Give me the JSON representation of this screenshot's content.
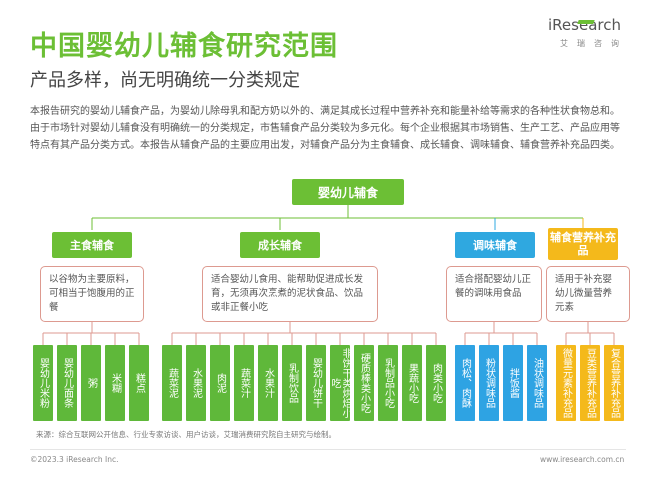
{
  "title": "中国婴幼儿辅食研究范围",
  "subtitle": "产品多样，尚无明确统一分类规定",
  "logo": {
    "word": "iResearch",
    "cn": "艾瑞咨询"
  },
  "intro": "本报告研究的婴幼儿辅食产品，为婴幼儿除母乳和配方奶以外的、满足其成长过程中营养补充和能量补给等需求的各种性状食物总和。由于市场针对婴幼儿辅食没有明确统一的分类规定，市售辅食产品分类较为多元化。每个企业根据其市场销售、生产工艺、产品应用等特点有其产品分类方式。本报告从辅食产品的主要应用出发，对辅食产品分为主食辅食、成长辅食、调味辅食、辅食营养补充品四类。",
  "diagram": {
    "root": "婴幼儿辅食",
    "categories": [
      {
        "label": "主食辅食",
        "color": "#6cbf35",
        "desc": "以谷物为主要原料，可相当于饱腹用的正餐",
        "items": [
          "婴幼儿米粉",
          "婴幼儿面条",
          "粥",
          "米糊",
          "糕点"
        ]
      },
      {
        "label": "成长辅食",
        "color": "#6cbf35",
        "desc": "适合婴幼儿食用、能帮助促进成长发育，无须再次烹煮的泥状食品、饮品或非正餐小吃",
        "items": [
          "蔬菜泥",
          "水果泥",
          "肉泥",
          "蔬菜汁",
          "水果汁",
          "乳制饮品",
          "婴幼儿饼干",
          "非饼干类烘焙小吃",
          "硬质棒类小吃",
          "乳制品小吃",
          "果蔬小吃",
          "肉类小吃"
        ]
      },
      {
        "label": "调味辅食",
        "color": "#2fa8e0",
        "desc": "适合搭配婴幼儿正餐的调味用食品",
        "items": [
          "肉松、肉酥",
          "粉状调味品",
          "拌饭酱",
          "油状调味品"
        ]
      },
      {
        "label": "辅食营养补充品",
        "color": "#f4b91b",
        "desc": "适用于补充婴幼儿微量营养元素",
        "items": [
          "微量元素补充品",
          "豆类营养补充品",
          "复合营养补充品"
        ]
      }
    ]
  },
  "source": "来源：综合互联网公开信息、行业专家访谈、用户访谈，艾瑞消费研究院自主研究与绘制。",
  "copyright": "©2023.3 iResearch Inc.",
  "site": "www.iresearch.com.cn"
}
